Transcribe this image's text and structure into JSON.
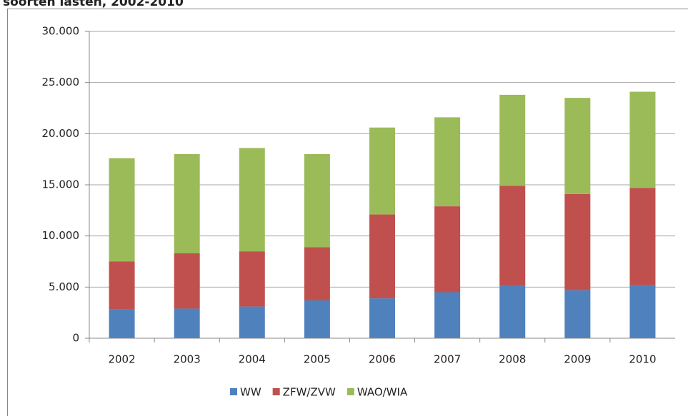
{
  "chart_data": {
    "type": "stacked-bar",
    "title": "soorten lasten, 2002-2010",
    "categories": [
      "2002",
      "2003",
      "2004",
      "2005",
      "2006",
      "2007",
      "2008",
      "2009",
      "2010"
    ],
    "series": [
      {
        "name": "WW",
        "color": "#4f81bd",
        "values": [
          2800,
          2900,
          3100,
          3700,
          3900,
          4500,
          5100,
          4700,
          5200
        ]
      },
      {
        "name": "ZFW/ZVW",
        "color": "#c0504d",
        "values": [
          4700,
          5400,
          5400,
          5200,
          8200,
          8400,
          9800,
          9400,
          9500
        ]
      },
      {
        "name": "WAO/WIA",
        "color": "#9bbb59",
        "values": [
          10100,
          9700,
          10100,
          9100,
          8500,
          8700,
          8900,
          9400,
          9400
        ]
      }
    ],
    "ylim": [
      0,
      30000
    ],
    "yticks": [
      0,
      {
        "value": 5000,
        "label": "5.000"
      },
      {
        "value": 10000,
        "label": "10.000"
      },
      {
        "value": 15000,
        "label": "15.000"
      },
      {
        "value": 20000,
        "label": "20.000"
      },
      {
        "value": 25000,
        "label": "25.000"
      },
      {
        "value": 30000,
        "label": "30.000"
      }
    ],
    "grid": true,
    "legend": "bottom"
  }
}
